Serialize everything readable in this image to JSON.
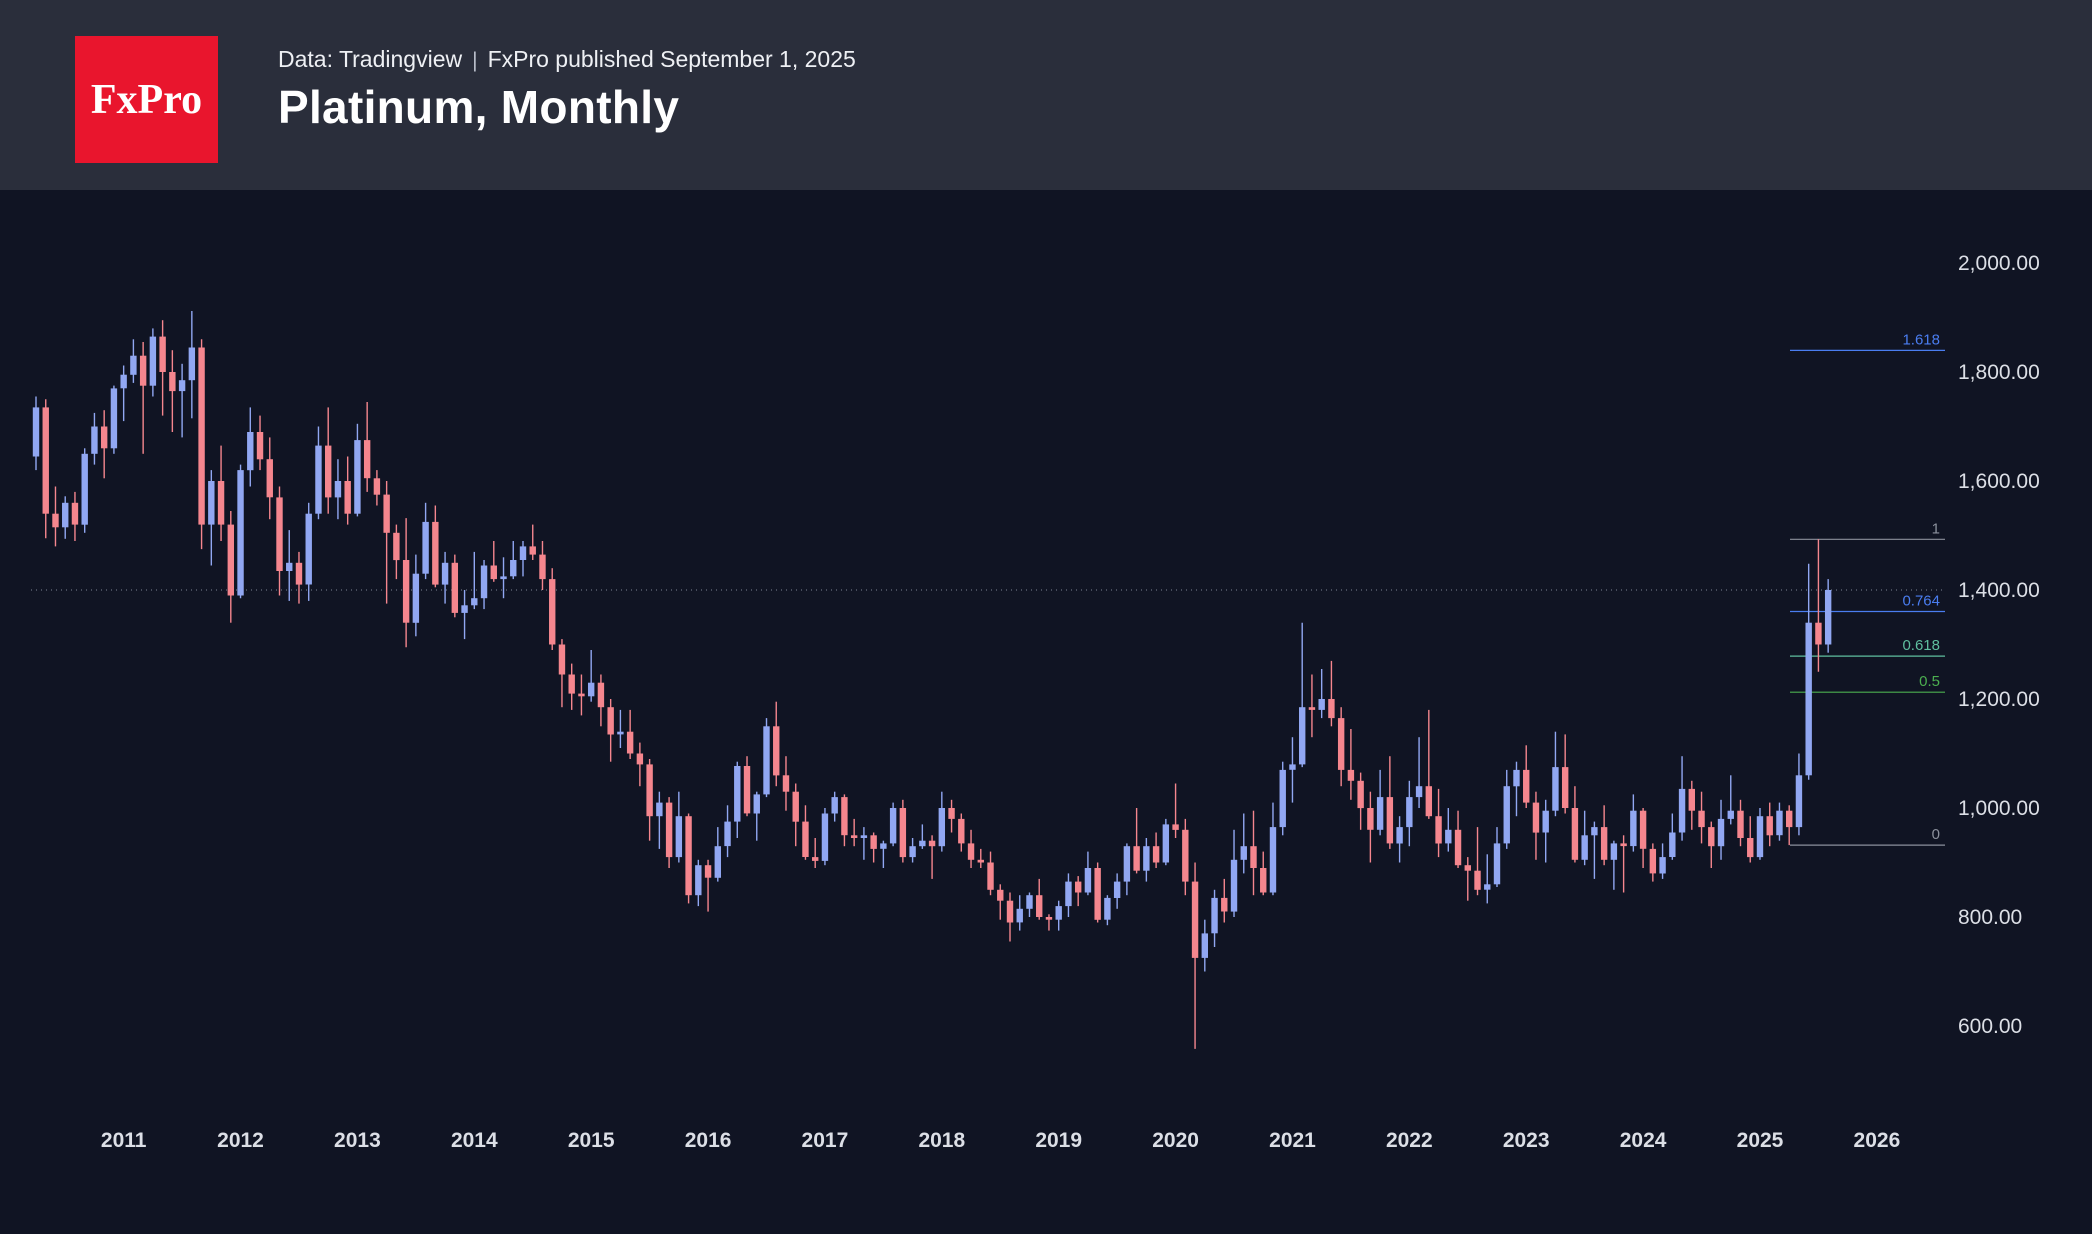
{
  "header": {
    "logo_text": "FxPro",
    "source_prefix": "Data: Tradingview",
    "separator": "|",
    "published_text": "FxPro published September 1, 2025",
    "title": "Platinum, Monthly"
  },
  "chart_data": {
    "type": "candlestick",
    "title": "Platinum, Monthly",
    "xlabel": "",
    "ylabel": "",
    "ylim": [
      600,
      2000
    ],
    "grid": false,
    "legend": "none",
    "last_price_line": 1400,
    "colors": {
      "up": "#91a7f2",
      "down": "#f5868e",
      "background": "#101423",
      "header_background": "#2a2e3b",
      "axis_text": "#dcdfe6",
      "logo_red": "#e9152d"
    },
    "y_ticks": [
      {
        "value": 2000,
        "label": "2,000.00"
      },
      {
        "value": 1800,
        "label": "1,800.00"
      },
      {
        "value": 1600,
        "label": "1,600.00"
      },
      {
        "value": 1400,
        "label": "1,400.00"
      },
      {
        "value": 1200,
        "label": "1,200.00"
      },
      {
        "value": 1000,
        "label": "1,000.00"
      },
      {
        "value": 800,
        "label": "800.00"
      },
      {
        "value": 600,
        "label": "600.00"
      }
    ],
    "x_ticks": [
      {
        "index": 9,
        "label": "2011"
      },
      {
        "index": 21,
        "label": "2012"
      },
      {
        "index": 33,
        "label": "2013"
      },
      {
        "index": 45,
        "label": "2014"
      },
      {
        "index": 57,
        "label": "2015"
      },
      {
        "index": 69,
        "label": "2016"
      },
      {
        "index": 81,
        "label": "2017"
      },
      {
        "index": 93,
        "label": "2018"
      },
      {
        "index": 105,
        "label": "2019"
      },
      {
        "index": 117,
        "label": "2020"
      },
      {
        "index": 129,
        "label": "2021"
      },
      {
        "index": 141,
        "label": "2022"
      },
      {
        "index": 153,
        "label": "2023"
      },
      {
        "index": 165,
        "label": "2024"
      },
      {
        "index": 177,
        "label": "2025"
      },
      {
        "index": 189,
        "label": "2026"
      }
    ],
    "fib": {
      "anchor_low": 932,
      "anchor_high": 1493,
      "levels": [
        {
          "ratio": 1.618,
          "label": "1.618",
          "color": "#4a7df0"
        },
        {
          "ratio": 1,
          "label": "1",
          "color": "#8b909c"
        },
        {
          "ratio": 0.764,
          "label": "0.764",
          "color": "#4a7df0"
        },
        {
          "ratio": 0.618,
          "label": "0.618",
          "color": "#5fbf9f"
        },
        {
          "ratio": 0.5,
          "label": "0.5",
          "color": "#4caf50"
        },
        {
          "ratio": 0,
          "label": "0",
          "color": "#8b909c"
        }
      ]
    },
    "candles": [
      [
        1645,
        1755,
        1620,
        1735
      ],
      [
        1735,
        1750,
        1495,
        1540
      ],
      [
        1540,
        1590,
        1480,
        1515
      ],
      [
        1515,
        1572,
        1494,
        1560
      ],
      [
        1560,
        1580,
        1490,
        1520
      ],
      [
        1520,
        1660,
        1505,
        1650
      ],
      [
        1650,
        1725,
        1630,
        1700
      ],
      [
        1700,
        1730,
        1605,
        1660
      ],
      [
        1660,
        1775,
        1650,
        1770
      ],
      [
        1770,
        1812,
        1710,
        1795
      ],
      [
        1795,
        1860,
        1780,
        1830
      ],
      [
        1830,
        1855,
        1650,
        1775
      ],
      [
        1775,
        1880,
        1755,
        1865
      ],
      [
        1865,
        1895,
        1720,
        1800
      ],
      [
        1800,
        1840,
        1690,
        1765
      ],
      [
        1765,
        1815,
        1680,
        1785
      ],
      [
        1785,
        1912,
        1715,
        1845
      ],
      [
        1845,
        1860,
        1475,
        1520
      ],
      [
        1520,
        1620,
        1445,
        1600
      ],
      [
        1600,
        1665,
        1490,
        1520
      ],
      [
        1520,
        1545,
        1340,
        1390
      ],
      [
        1390,
        1630,
        1385,
        1620
      ],
      [
        1620,
        1735,
        1590,
        1690
      ],
      [
        1690,
        1720,
        1620,
        1640
      ],
      [
        1640,
        1680,
        1530,
        1570
      ],
      [
        1570,
        1590,
        1390,
        1435
      ],
      [
        1435,
        1510,
        1380,
        1450
      ],
      [
        1450,
        1470,
        1375,
        1410
      ],
      [
        1410,
        1560,
        1380,
        1540
      ],
      [
        1540,
        1700,
        1530,
        1665
      ],
      [
        1665,
        1735,
        1540,
        1570
      ],
      [
        1570,
        1640,
        1530,
        1600
      ],
      [
        1600,
        1645,
        1520,
        1540
      ],
      [
        1540,
        1705,
        1535,
        1675
      ],
      [
        1675,
        1745,
        1580,
        1605
      ],
      [
        1605,
        1620,
        1555,
        1575
      ],
      [
        1575,
        1600,
        1375,
        1505
      ],
      [
        1505,
        1520,
        1420,
        1455
      ],
      [
        1455,
        1532,
        1295,
        1340
      ],
      [
        1340,
        1465,
        1315,
        1430
      ],
      [
        1430,
        1560,
        1420,
        1525
      ],
      [
        1525,
        1555,
        1405,
        1410
      ],
      [
        1410,
        1470,
        1375,
        1450
      ],
      [
        1450,
        1465,
        1350,
        1358
      ],
      [
        1358,
        1400,
        1310,
        1372
      ],
      [
        1372,
        1470,
        1365,
        1385
      ],
      [
        1385,
        1455,
        1365,
        1445
      ],
      [
        1445,
        1490,
        1415,
        1420
      ],
      [
        1420,
        1460,
        1385,
        1425
      ],
      [
        1425,
        1490,
        1420,
        1455
      ],
      [
        1455,
        1490,
        1425,
        1480
      ],
      [
        1480,
        1520,
        1455,
        1465
      ],
      [
        1465,
        1490,
        1400,
        1420
      ],
      [
        1420,
        1440,
        1290,
        1300
      ],
      [
        1300,
        1310,
        1185,
        1245
      ],
      [
        1245,
        1265,
        1180,
        1210
      ],
      [
        1210,
        1245,
        1170,
        1205
      ],
      [
        1205,
        1290,
        1195,
        1230
      ],
      [
        1230,
        1245,
        1150,
        1185
      ],
      [
        1185,
        1200,
        1085,
        1135
      ],
      [
        1135,
        1180,
        1110,
        1140
      ],
      [
        1140,
        1180,
        1090,
        1100
      ],
      [
        1100,
        1120,
        1040,
        1080
      ],
      [
        1080,
        1090,
        940,
        985
      ],
      [
        985,
        1030,
        925,
        1010
      ],
      [
        1010,
        1020,
        890,
        910
      ],
      [
        910,
        1030,
        900,
        985
      ],
      [
        985,
        990,
        825,
        840
      ],
      [
        840,
        905,
        820,
        895
      ],
      [
        895,
        905,
        810,
        872
      ],
      [
        872,
        965,
        865,
        930
      ],
      [
        930,
        1005,
        910,
        975
      ],
      [
        975,
        1085,
        945,
        1077
      ],
      [
        1077,
        1095,
        985,
        990
      ],
      [
        990,
        1030,
        940,
        1025
      ],
      [
        1025,
        1165,
        1020,
        1150
      ],
      [
        1150,
        1195,
        1040,
        1060
      ],
      [
        1060,
        1095,
        995,
        1030
      ],
      [
        1030,
        1045,
        930,
        975
      ],
      [
        975,
        1005,
        905,
        910
      ],
      [
        910,
        945,
        890,
        903
      ],
      [
        903,
        1000,
        895,
        990
      ],
      [
        990,
        1030,
        975,
        1020
      ],
      [
        1020,
        1025,
        930,
        950
      ],
      [
        950,
        980,
        930,
        945
      ],
      [
        945,
        965,
        905,
        950
      ],
      [
        950,
        955,
        900,
        925
      ],
      [
        925,
        940,
        890,
        935
      ],
      [
        935,
        1010,
        930,
        1000
      ],
      [
        1000,
        1015,
        900,
        910
      ],
      [
        910,
        945,
        900,
        930
      ],
      [
        930,
        970,
        925,
        940
      ],
      [
        940,
        950,
        870,
        930
      ],
      [
        930,
        1030,
        920,
        1000
      ],
      [
        1000,
        1015,
        955,
        980
      ],
      [
        980,
        990,
        920,
        935
      ],
      [
        935,
        960,
        890,
        905
      ],
      [
        905,
        925,
        890,
        900
      ],
      [
        900,
        920,
        840,
        850
      ],
      [
        850,
        860,
        795,
        830
      ],
      [
        830,
        845,
        755,
        790
      ],
      [
        790,
        840,
        775,
        815
      ],
      [
        815,
        845,
        800,
        840
      ],
      [
        840,
        870,
        795,
        800
      ],
      [
        800,
        805,
        775,
        795
      ],
      [
        795,
        830,
        775,
        820
      ],
      [
        820,
        880,
        800,
        865
      ],
      [
        865,
        875,
        820,
        845
      ],
      [
        845,
        920,
        840,
        890
      ],
      [
        890,
        900,
        790,
        795
      ],
      [
        795,
        840,
        785,
        835
      ],
      [
        835,
        880,
        815,
        865
      ],
      [
        865,
        935,
        840,
        930
      ],
      [
        930,
        1000,
        880,
        885
      ],
      [
        885,
        945,
        865,
        930
      ],
      [
        930,
        955,
        890,
        900
      ],
      [
        900,
        980,
        895,
        970
      ],
      [
        970,
        1045,
        945,
        960
      ],
      [
        960,
        980,
        840,
        865
      ],
      [
        865,
        900,
        558,
        725
      ],
      [
        725,
        795,
        700,
        770
      ],
      [
        770,
        850,
        745,
        835
      ],
      [
        835,
        870,
        790,
        810
      ],
      [
        810,
        960,
        800,
        905
      ],
      [
        905,
        990,
        880,
        930
      ],
      [
        930,
        995,
        840,
        890
      ],
      [
        890,
        920,
        840,
        845
      ],
      [
        845,
        1010,
        840,
        965
      ],
      [
        965,
        1085,
        950,
        1070
      ],
      [
        1070,
        1130,
        1010,
        1080
      ],
      [
        1080,
        1340,
        1075,
        1185
      ],
      [
        1185,
        1245,
        1130,
        1180
      ],
      [
        1180,
        1255,
        1165,
        1200
      ],
      [
        1200,
        1270,
        1150,
        1165
      ],
      [
        1165,
        1185,
        1040,
        1070
      ],
      [
        1070,
        1145,
        1015,
        1050
      ],
      [
        1050,
        1065,
        960,
        1000
      ],
      [
        1000,
        1030,
        900,
        960
      ],
      [
        960,
        1070,
        950,
        1020
      ],
      [
        1020,
        1095,
        925,
        935
      ],
      [
        935,
        985,
        900,
        965
      ],
      [
        965,
        1050,
        930,
        1020
      ],
      [
        1020,
        1130,
        1000,
        1040
      ],
      [
        1040,
        1180,
        980,
        985
      ],
      [
        985,
        1035,
        910,
        935
      ],
      [
        935,
        1000,
        920,
        960
      ],
      [
        960,
        995,
        890,
        895
      ],
      [
        895,
        910,
        830,
        885
      ],
      [
        885,
        965,
        840,
        850
      ],
      [
        850,
        915,
        825,
        860
      ],
      [
        860,
        965,
        855,
        935
      ],
      [
        935,
        1070,
        925,
        1040
      ],
      [
        1040,
        1085,
        985,
        1070
      ],
      [
        1070,
        1115,
        1000,
        1010
      ],
      [
        1010,
        1030,
        905,
        955
      ],
      [
        955,
        1015,
        900,
        995
      ],
      [
        995,
        1140,
        985,
        1075
      ],
      [
        1075,
        1135,
        990,
        1000
      ],
      [
        1000,
        1040,
        900,
        905
      ],
      [
        905,
        995,
        895,
        950
      ],
      [
        950,
        975,
        870,
        965
      ],
      [
        965,
        1005,
        895,
        905
      ],
      [
        905,
        940,
        850,
        935
      ],
      [
        935,
        950,
        845,
        930
      ],
      [
        930,
        1025,
        920,
        995
      ],
      [
        995,
        1000,
        890,
        925
      ],
      [
        925,
        935,
        865,
        880
      ],
      [
        880,
        935,
        870,
        910
      ],
      [
        910,
        990,
        905,
        955
      ],
      [
        955,
        1095,
        940,
        1035
      ],
      [
        1035,
        1050,
        960,
        995
      ],
      [
        995,
        1030,
        935,
        965
      ],
      [
        965,
        975,
        890,
        930
      ],
      [
        930,
        1015,
        905,
        980
      ],
      [
        980,
        1060,
        970,
        995
      ],
      [
        995,
        1015,
        930,
        945
      ],
      [
        945,
        985,
        900,
        910
      ],
      [
        910,
        1000,
        905,
        985
      ],
      [
        985,
        1010,
        930,
        950
      ],
      [
        950,
        1010,
        940,
        995
      ],
      [
        995,
        1005,
        932,
        965
      ],
      [
        965,
        1100,
        950,
        1060
      ],
      [
        1060,
        1448,
        1052,
        1340
      ],
      [
        1340,
        1493,
        1250,
        1300
      ],
      [
        1300,
        1420,
        1285,
        1400
      ]
    ]
  }
}
